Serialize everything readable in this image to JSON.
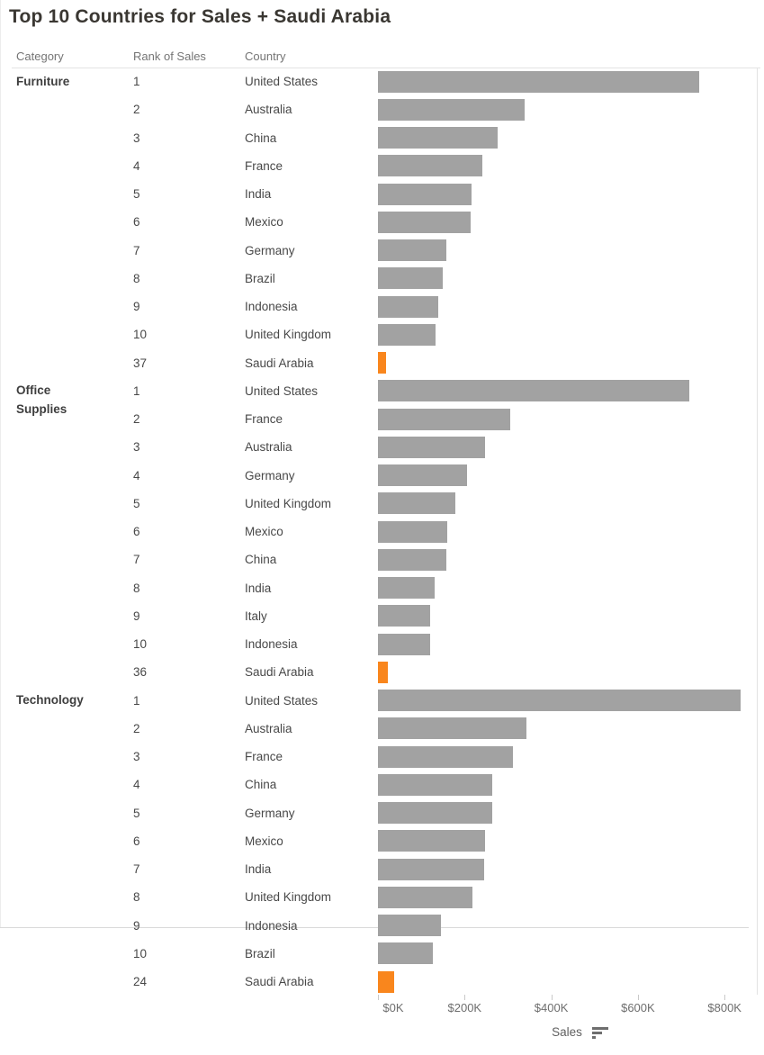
{
  "title": "Top 10 Countries for Sales + Saudi Arabia",
  "header": {
    "category": "Category",
    "rank": "Rank of Sales",
    "country": "Country"
  },
  "axis": {
    "label": "Sales",
    "ticks": [
      "$0K",
      "$200K",
      "$400K",
      "$600K",
      "$800K"
    ],
    "tick_values_k": [
      0,
      200,
      400,
      600,
      800
    ],
    "sort_icon": "sort-descending-icon"
  },
  "colors": {
    "bar_gray": "#a2a2a2",
    "bar_highlight_orange": "#f9861d",
    "title_text": "#3a3732",
    "header_text": "#757575",
    "row_text": "#484848",
    "axis_text": "#6e6e6e",
    "grid_line": "#e3e3e3"
  },
  "chart_data": {
    "type": "bar",
    "orientation": "horizontal",
    "title": "Top 10 Countries for Sales + Saudi Arabia",
    "xlabel": "Sales",
    "x_unit": "USD thousands (values estimated from bar lengths)",
    "xlim_k": [
      0,
      874
    ],
    "grid": false,
    "highlight_country": "Saudi Arabia",
    "groups": [
      {
        "category": "Furniture",
        "rows": [
          {
            "rank": "1",
            "country": "United States",
            "sales_k": 742,
            "highlight": false
          },
          {
            "rank": "2",
            "country": "Australia",
            "sales_k": 338,
            "highlight": false
          },
          {
            "rank": "3",
            "country": "China",
            "sales_k": 276,
            "highlight": false
          },
          {
            "rank": "4",
            "country": "France",
            "sales_k": 241,
            "highlight": false
          },
          {
            "rank": "5",
            "country": "India",
            "sales_k": 215,
            "highlight": false
          },
          {
            "rank": "6",
            "country": "Mexico",
            "sales_k": 213,
            "highlight": false
          },
          {
            "rank": "7",
            "country": "Germany",
            "sales_k": 158,
            "highlight": false
          },
          {
            "rank": "8",
            "country": "Brazil",
            "sales_k": 149,
            "highlight": false
          },
          {
            "rank": "9",
            "country": "Indonesia",
            "sales_k": 140,
            "highlight": false
          },
          {
            "rank": "10",
            "country": "United Kingdom",
            "sales_k": 133,
            "highlight": false
          },
          {
            "rank": "37",
            "country": "Saudi Arabia",
            "sales_k": 19,
            "highlight": true
          }
        ]
      },
      {
        "category": "Office Supplies",
        "rows": [
          {
            "rank": "1",
            "country": "United States",
            "sales_k": 719,
            "highlight": false
          },
          {
            "rank": "2",
            "country": "France",
            "sales_k": 306,
            "highlight": false
          },
          {
            "rank": "3",
            "country": "Australia",
            "sales_k": 247,
            "highlight": false
          },
          {
            "rank": "4",
            "country": "Germany",
            "sales_k": 205,
            "highlight": false
          },
          {
            "rank": "5",
            "country": "United Kingdom",
            "sales_k": 178,
            "highlight": false
          },
          {
            "rank": "6",
            "country": "Mexico",
            "sales_k": 159,
            "highlight": false
          },
          {
            "rank": "7",
            "country": "China",
            "sales_k": 158,
            "highlight": false
          },
          {
            "rank": "8",
            "country": "India",
            "sales_k": 130,
            "highlight": false
          },
          {
            "rank": "9",
            "country": "Italy",
            "sales_k": 121,
            "highlight": false
          },
          {
            "rank": "10",
            "country": "Indonesia",
            "sales_k": 120,
            "highlight": false
          },
          {
            "rank": "36",
            "country": "Saudi Arabia",
            "sales_k": 23,
            "highlight": true
          }
        ]
      },
      {
        "category": "Technology",
        "rows": [
          {
            "rank": "1",
            "country": "United States",
            "sales_k": 836,
            "highlight": false
          },
          {
            "rank": "2",
            "country": "Australia",
            "sales_k": 342,
            "highlight": false
          },
          {
            "rank": "3",
            "country": "France",
            "sales_k": 312,
            "highlight": false
          },
          {
            "rank": "4",
            "country": "China",
            "sales_k": 264,
            "highlight": false
          },
          {
            "rank": "5",
            "country": "Germany",
            "sales_k": 263,
            "highlight": false
          },
          {
            "rank": "6",
            "country": "Mexico",
            "sales_k": 247,
            "highlight": false
          },
          {
            "rank": "7",
            "country": "India",
            "sales_k": 244,
            "highlight": false
          },
          {
            "rank": "8",
            "country": "United Kingdom",
            "sales_k": 217,
            "highlight": false
          },
          {
            "rank": "9",
            "country": "Indonesia",
            "sales_k": 146,
            "highlight": false
          },
          {
            "rank": "10",
            "country": "Brazil",
            "sales_k": 127,
            "highlight": false
          },
          {
            "rank": "24",
            "country": "Saudi Arabia",
            "sales_k": 38,
            "highlight": true
          }
        ]
      }
    ]
  }
}
